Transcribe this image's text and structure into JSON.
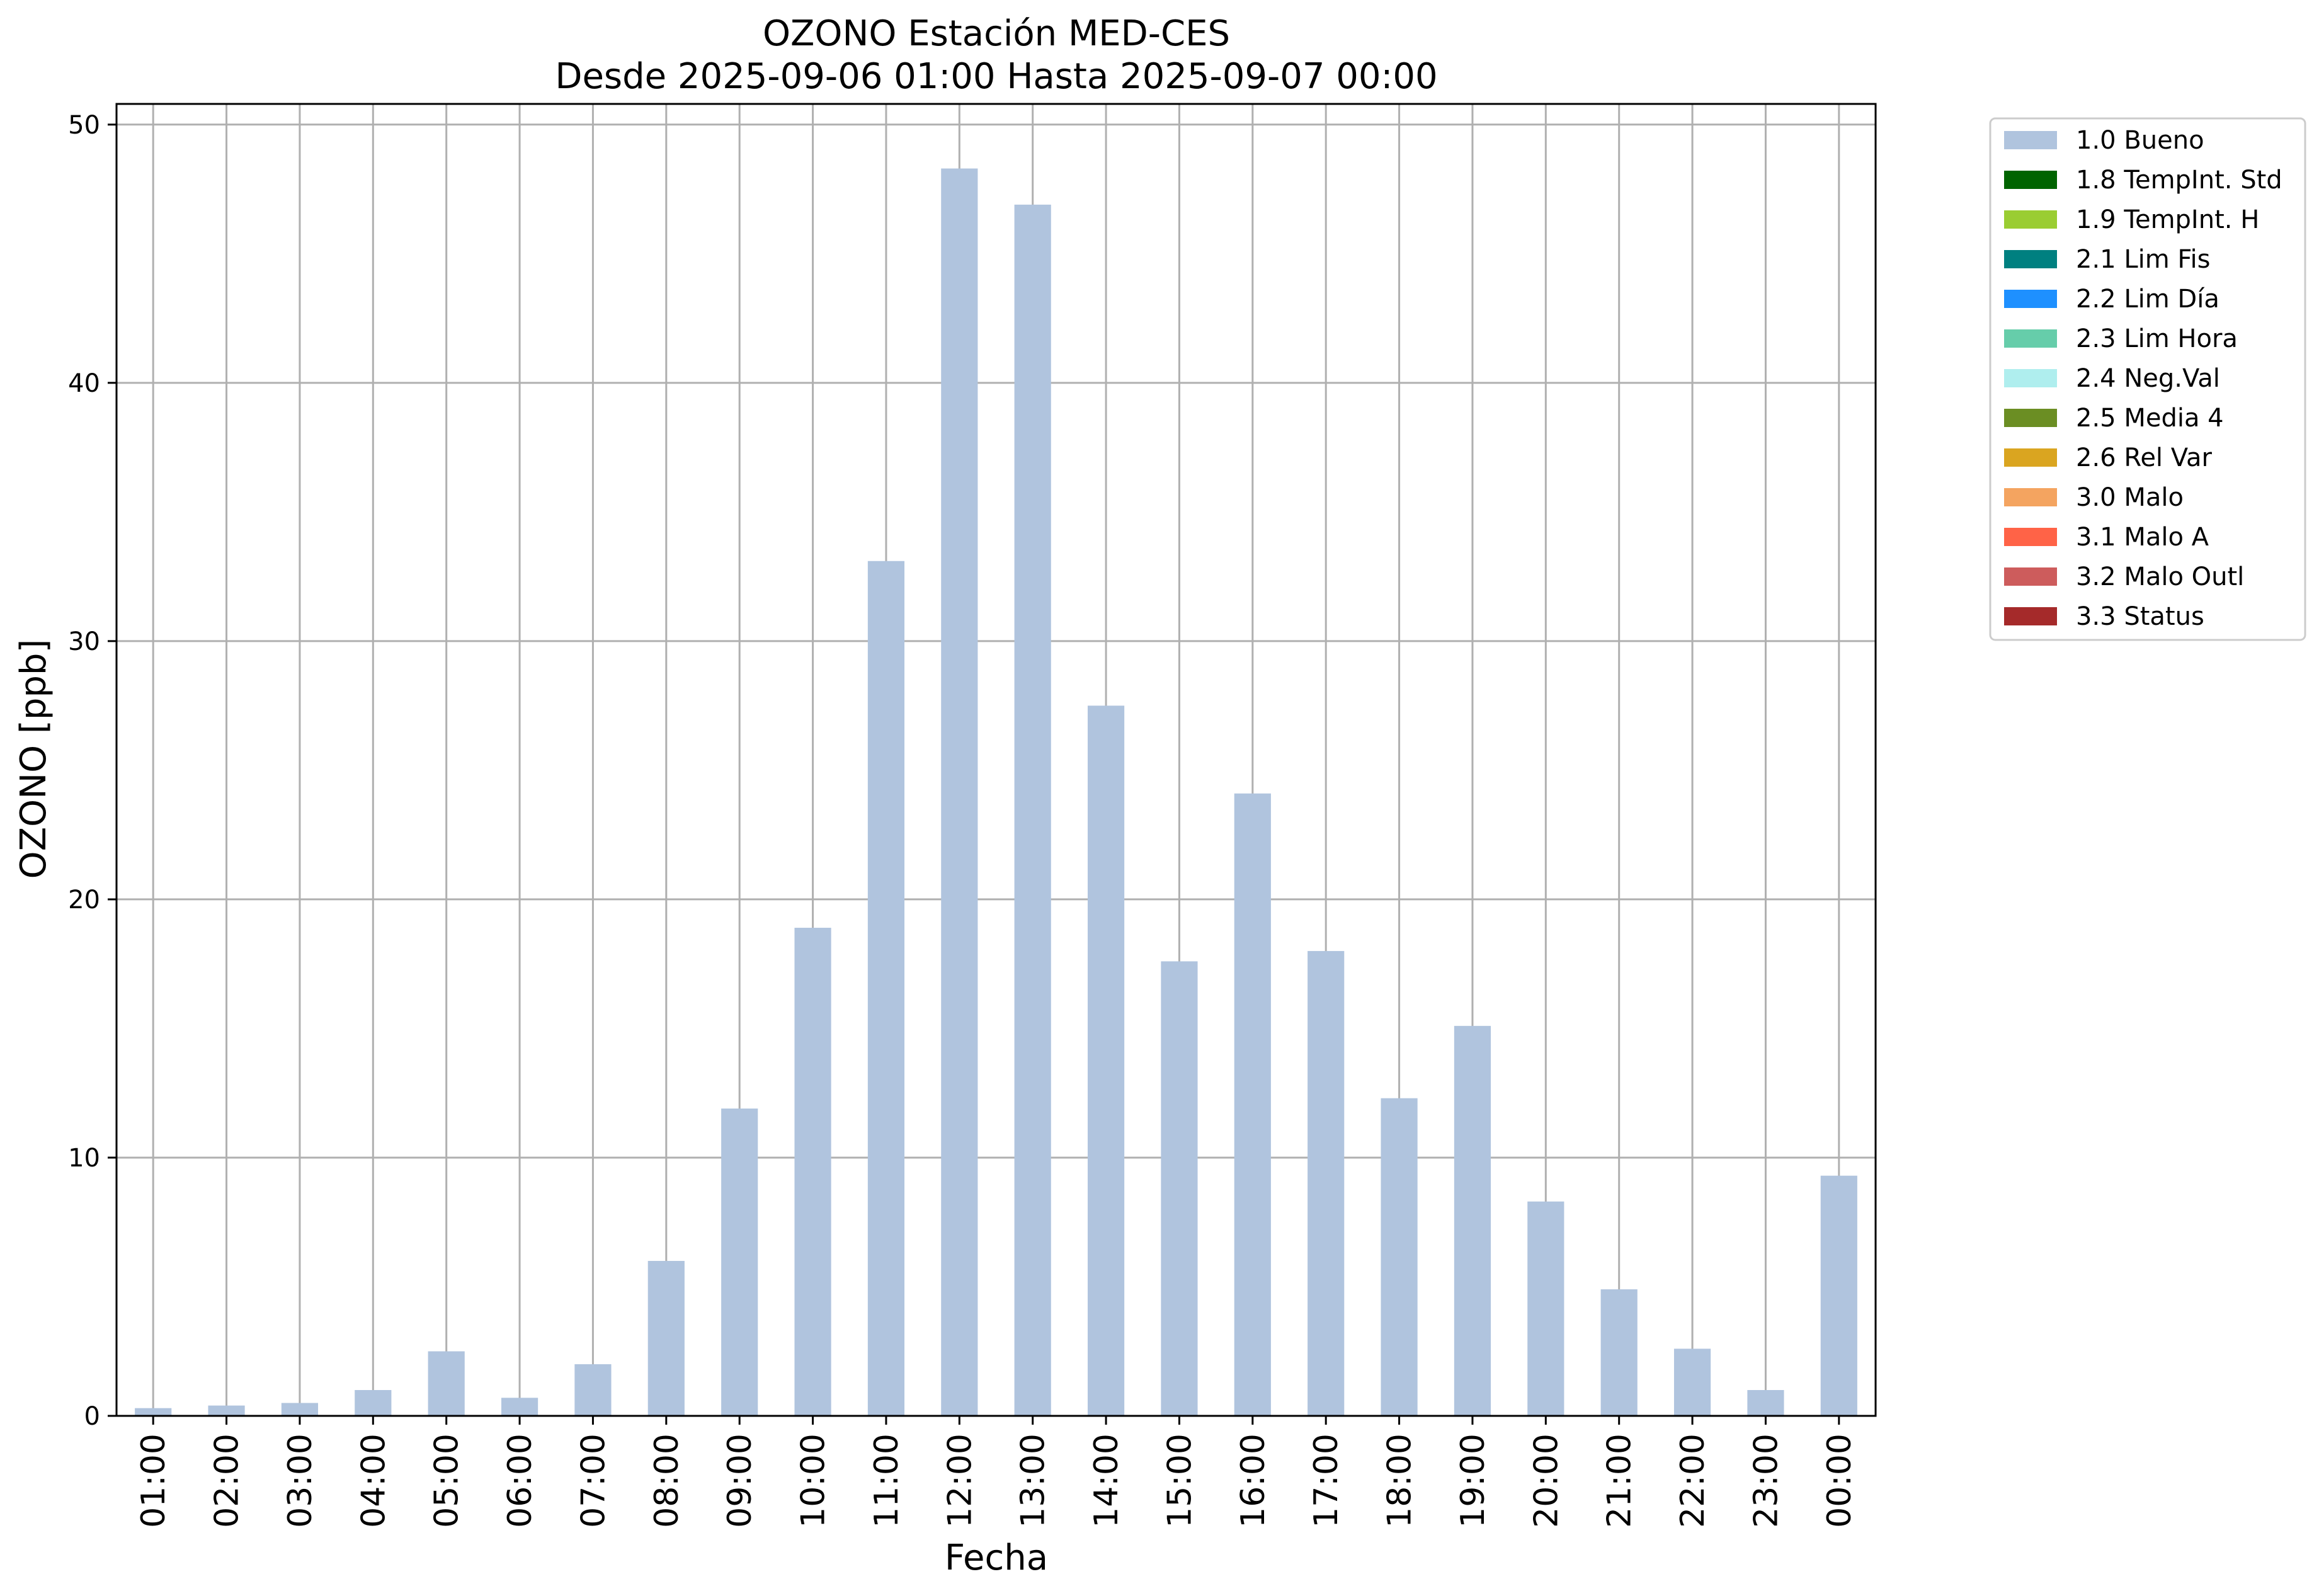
{
  "chart_data": {
    "type": "bar",
    "title": "OZONO Estación MED-CES",
    "subtitle": "Desde 2025-09-06 01:00 Hasta 2025-09-07 00:00",
    "xlabel": "Fecha",
    "ylabel": "OZONO [ppb]",
    "ylim": [
      0,
      50.8
    ],
    "yticks": [
      0,
      10,
      20,
      30,
      40,
      50
    ],
    "grid": true,
    "legend_position": "outside-top-right",
    "categories": [
      "01:00",
      "02:00",
      "03:00",
      "04:00",
      "05:00",
      "06:00",
      "07:00",
      "08:00",
      "09:00",
      "10:00",
      "11:00",
      "12:00",
      "13:00",
      "14:00",
      "15:00",
      "16:00",
      "17:00",
      "18:00",
      "19:00",
      "20:00",
      "21:00",
      "22:00",
      "23:00",
      "00:00"
    ],
    "series": [
      {
        "name": "1.0 Bueno",
        "color": "#b0c4de",
        "values": [
          0.3,
          0.4,
          0.5,
          1.0,
          2.5,
          0.7,
          2.0,
          6.0,
          11.9,
          18.9,
          33.1,
          48.3,
          46.9,
          27.5,
          17.6,
          24.1,
          18.0,
          12.3,
          15.1,
          8.3,
          4.9,
          2.6,
          1.0,
          9.3
        ]
      }
    ],
    "legend": [
      {
        "label": "1.0 Bueno",
        "color": "#b0c4de"
      },
      {
        "label": "1.8 TempInt. Std",
        "color": "#006400"
      },
      {
        "label": "1.9 TempInt. H",
        "color": "#9acd32"
      },
      {
        "label": "2.1 Lim Fis",
        "color": "#008080"
      },
      {
        "label": "2.2 Lim Día",
        "color": "#1e90ff"
      },
      {
        "label": "2.3 Lim Hora",
        "color": "#66cdaa"
      },
      {
        "label": "2.4 Neg.Val",
        "color": "#afeeee"
      },
      {
        "label": "2.5 Media 4",
        "color": "#6b8e23"
      },
      {
        "label": "2.6 Rel Var",
        "color": "#daa520"
      },
      {
        "label": "3.0 Malo",
        "color": "#f4a460"
      },
      {
        "label": "3.1 Malo A",
        "color": "#ff6347"
      },
      {
        "label": "3.2 Malo Outl",
        "color": "#cd5c5c"
      },
      {
        "label": "3.3 Status",
        "color": "#a52a2a"
      }
    ]
  }
}
